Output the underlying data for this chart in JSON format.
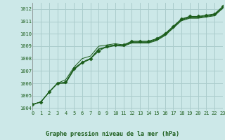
{
  "xlabel": "Graphe pression niveau de la mer (hPa)",
  "background_color": "#cce8e8",
  "grid_color": "#aacccc",
  "line_color": "#1a5c1a",
  "xlim": [
    0,
    23
  ],
  "ylim": [
    1003.8,
    1012.5
  ],
  "yticks": [
    1004,
    1005,
    1006,
    1007,
    1008,
    1009,
    1010,
    1011,
    1012
  ],
  "xticks": [
    0,
    1,
    2,
    3,
    4,
    5,
    6,
    7,
    8,
    9,
    10,
    11,
    12,
    13,
    14,
    15,
    16,
    17,
    18,
    19,
    20,
    21,
    22,
    23
  ],
  "series": [
    [
      1004.3,
      1004.5,
      1005.3,
      1006.0,
      1006.1,
      1007.2,
      1007.7,
      1008.0,
      1008.6,
      1009.0,
      1009.1,
      1009.1,
      1009.4,
      1009.4,
      1009.4,
      1009.6,
      1010.0,
      1010.6,
      1011.2,
      1011.4,
      1011.4,
      1011.5,
      1011.6,
      1012.2
    ],
    [
      1004.3,
      1004.5,
      1005.3,
      1006.0,
      1006.3,
      1007.3,
      1008.0,
      1008.2,
      1009.0,
      1009.1,
      1009.2,
      1009.1,
      1009.35,
      1009.35,
      1009.35,
      1009.55,
      1009.95,
      1010.55,
      1011.15,
      1011.35,
      1011.35,
      1011.45,
      1011.55,
      1012.15
    ],
    [
      1004.3,
      1004.5,
      1005.3,
      1006.0,
      1006.0,
      1007.1,
      1007.65,
      1007.95,
      1008.75,
      1008.9,
      1009.05,
      1009.0,
      1009.25,
      1009.25,
      1009.25,
      1009.45,
      1009.85,
      1010.45,
      1011.05,
      1011.25,
      1011.25,
      1011.35,
      1011.45,
      1012.05
    ],
    [
      1004.3,
      1004.5,
      1005.3,
      1006.0,
      1006.05,
      1007.15,
      1007.7,
      1008.0,
      1008.8,
      1008.95,
      1009.1,
      1009.05,
      1009.3,
      1009.3,
      1009.3,
      1009.5,
      1009.9,
      1010.5,
      1011.1,
      1011.3,
      1011.3,
      1011.4,
      1011.5,
      1012.1
    ]
  ],
  "marker": "D",
  "marker_size": 2.5,
  "linewidth": 0.8
}
